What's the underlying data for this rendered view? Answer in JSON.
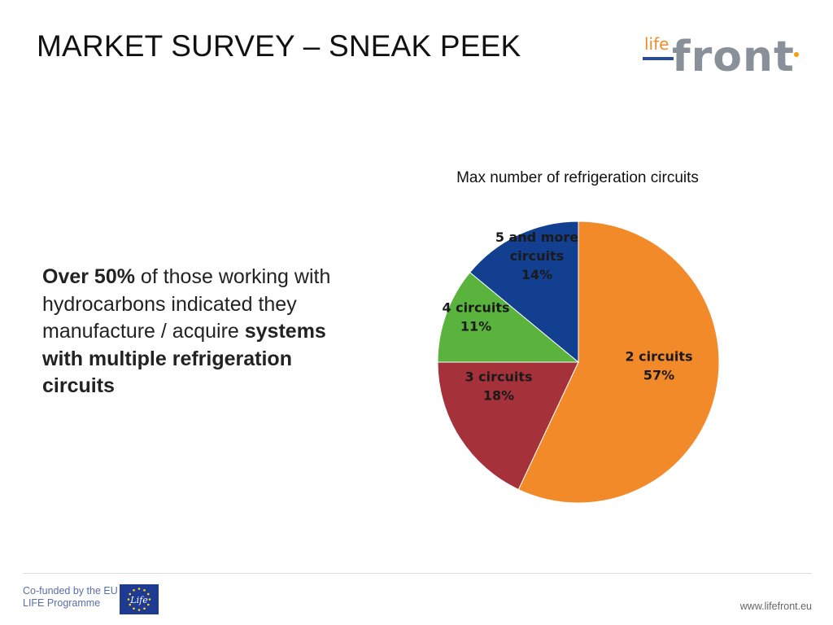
{
  "slide": {
    "title": "MARKET SURVEY – SNEAK PEEK",
    "body": {
      "part1_bold": "Over 50%",
      "part2": " of those working with hydrocarbons indicated they manufacture / acquire ",
      "part3_bold": "systems with multiple refrigeration circuits"
    }
  },
  "logo": {
    "life_text": "life",
    "front_text": "front",
    "colors": {
      "life": "#f28c28",
      "front": "#8a9099",
      "bar": "#2a4d8f",
      "dot": "#f2a100"
    }
  },
  "footer": {
    "cofunded_line1": "Co-funded by the EU",
    "cofunded_line2": "LIFE Programme",
    "flag_text": "Life",
    "website": "www.lifefront.eu"
  },
  "chart_data": {
    "type": "pie",
    "title": "Max number of refrigeration circuits",
    "slices": [
      {
        "label_lines": [
          "2 circuits",
          "57%"
        ],
        "value": 57,
        "color": "#f28a2a"
      },
      {
        "label_lines": [
          "3 circuits",
          "18%"
        ],
        "value": 18,
        "color": "#a5313b"
      },
      {
        "label_lines": [
          "4 circuits",
          "11%"
        ],
        "value": 11,
        "color": "#5ab33c"
      },
      {
        "label_lines": [
          "5 and more",
          "circuits",
          "14%"
        ],
        "value": 14,
        "color": "#123f8f"
      }
    ]
  }
}
